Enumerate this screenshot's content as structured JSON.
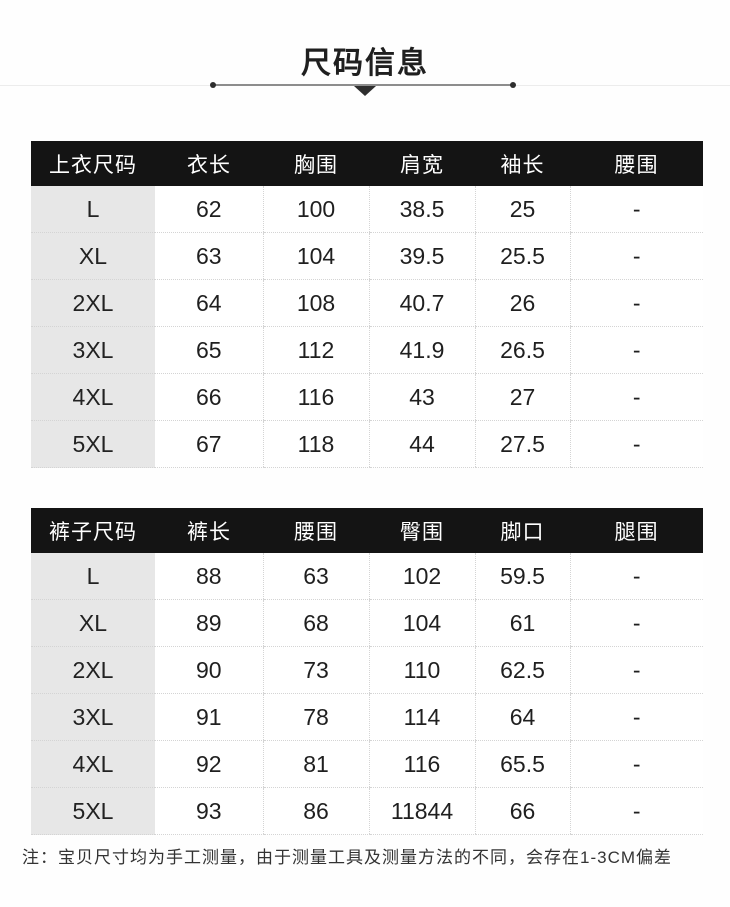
{
  "title": "尺码信息",
  "note": "注：宝贝尺寸均为手工测量，由于测量工具及测量方法的不同，会存在1-3CM偏差",
  "colors": {
    "page_bg": "#fefefe",
    "title_color": "#1f1f1f",
    "header_bg": "#141414",
    "header_text": "#ffffff",
    "size_col_bg": "#e7e7e7",
    "divider": "#d4d4d4",
    "body_text": "#1f1f1f",
    "accent_line": "#8d8d8d",
    "accent_dark": "#2e2e2e",
    "faint_line": "#ececec",
    "note_color": "#333333"
  },
  "tables": [
    {
      "name": "top-sizes",
      "columns": [
        "上衣尺码",
        "衣长",
        "胸围",
        "肩宽",
        "袖长",
        "腰围"
      ],
      "rows": [
        [
          "L",
          "62",
          "100",
          "38.5",
          "25",
          "-"
        ],
        [
          "XL",
          "63",
          "104",
          "39.5",
          "25.5",
          "-"
        ],
        [
          "2XL",
          "64",
          "108",
          "40.7",
          "26",
          "-"
        ],
        [
          "3XL",
          "65",
          "112",
          "41.9",
          "26.5",
          "-"
        ],
        [
          "4XL",
          "66",
          "116",
          "43",
          "27",
          "-"
        ],
        [
          "5XL",
          "67",
          "118",
          "44",
          "27.5",
          "-"
        ]
      ]
    },
    {
      "name": "pants-sizes",
      "columns": [
        "裤子尺码",
        "裤长",
        "腰围",
        "臀围",
        "脚口",
        "腿围"
      ],
      "rows": [
        [
          "L",
          "88",
          "63",
          "102",
          "59.5",
          "-"
        ],
        [
          "XL",
          "89",
          "68",
          "104",
          "61",
          "-"
        ],
        [
          "2XL",
          "90",
          "73",
          "110",
          "62.5",
          "-"
        ],
        [
          "3XL",
          "91",
          "78",
          "114",
          "64",
          "-"
        ],
        [
          "4XL",
          "92",
          "81",
          "116",
          "65.5",
          "-"
        ],
        [
          "5XL",
          "93",
          "86",
          "11844",
          "66",
          "-"
        ]
      ]
    }
  ]
}
